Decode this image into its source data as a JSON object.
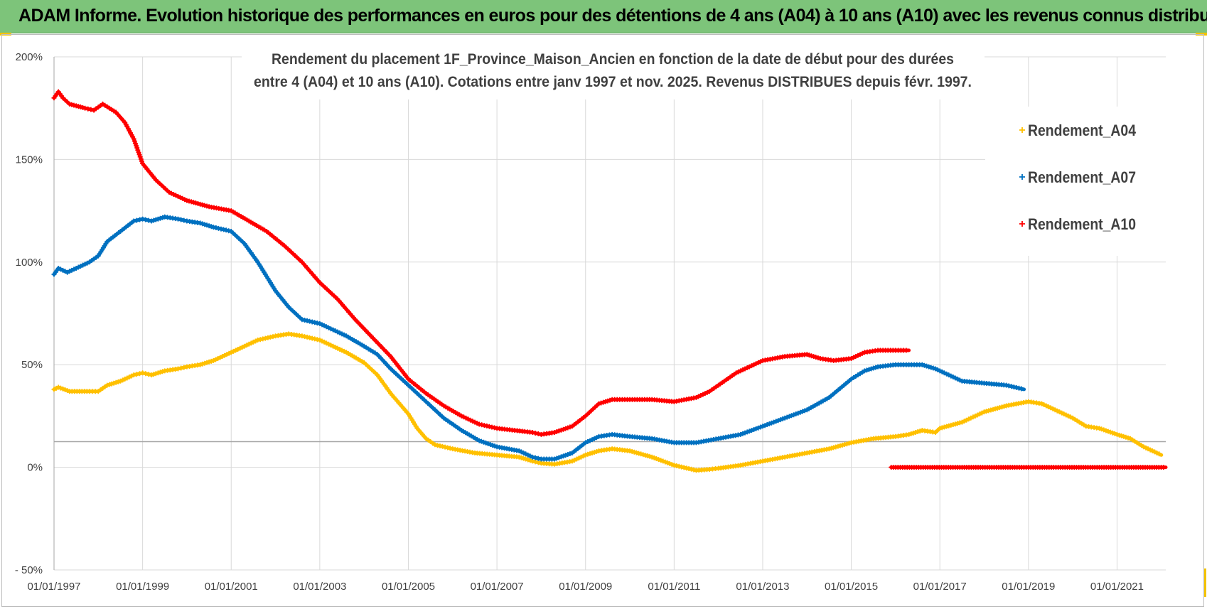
{
  "banner": {
    "title": "ADAM Informe. Evolution historique des performances en euros pour des détentions de 4 ans (A04) à 10 ans (A10) avec les revenus connus distribués",
    "bg_color": "#7dc47a",
    "accent_color": "#f2c200"
  },
  "chart_data": {
    "type": "scatter",
    "title_lines": [
      "Rendement du placement 1F_Province_Maison_Ancien en fonction de la date de début pour des durées",
      "entre 4 (A04) et 10 ans (A10).  Cotations entre janv 1997 et  nov. 2025. Revenus DISTRIBUES depuis févr. 1997."
    ],
    "x_range": [
      1997.0,
      2022.1
    ],
    "x_ticks": [
      {
        "value": 1997,
        "label": "01/01/1997"
      },
      {
        "value": 1999,
        "label": "01/01/1999"
      },
      {
        "value": 2001,
        "label": "01/01/2001"
      },
      {
        "value": 2003,
        "label": "01/01/2003"
      },
      {
        "value": 2005,
        "label": "01/01/2005"
      },
      {
        "value": 2007,
        "label": "01/01/2007"
      },
      {
        "value": 2009,
        "label": "01/01/2009"
      },
      {
        "value": 2011,
        "label": "01/01/2011"
      },
      {
        "value": 2013,
        "label": "01/01/2013"
      },
      {
        "value": 2015,
        "label": "01/01/2015"
      },
      {
        "value": 2017,
        "label": "01/01/2017"
      },
      {
        "value": 2019,
        "label": "01/01/2019"
      },
      {
        "value": 2021,
        "label": "01/01/2021"
      }
    ],
    "y_range": [
      -50,
      200
    ],
    "y_ticks": [
      {
        "value": 200,
        "label": "200%"
      },
      {
        "value": 150,
        "label": "150%"
      },
      {
        "value": 100,
        "label": "100%"
      },
      {
        "value": 50,
        "label": "50%"
      },
      {
        "value": 0,
        "label": "0%"
      },
      {
        "value": -50,
        "label": "- 50%"
      }
    ],
    "reference_line": 12.5,
    "legend": [
      {
        "name": "Rendement_A04",
        "color": "#ffc000"
      },
      {
        "name": "Rendement_A07",
        "color": "#0070c0"
      },
      {
        "name": "Rendement_A10",
        "color": "#ff0000"
      }
    ],
    "series": [
      {
        "name": "Rendement_A04",
        "color": "#ffc000",
        "points": [
          [
            1997.0,
            38
          ],
          [
            1997.1,
            39
          ],
          [
            1997.35,
            37
          ],
          [
            1997.8,
            37
          ],
          [
            1998.0,
            37
          ],
          [
            1998.2,
            40
          ],
          [
            1998.5,
            42
          ],
          [
            1998.8,
            45
          ],
          [
            1999.0,
            46
          ],
          [
            1999.2,
            45
          ],
          [
            1999.5,
            47
          ],
          [
            1999.8,
            48
          ],
          [
            2000.0,
            49
          ],
          [
            2000.3,
            50
          ],
          [
            2000.6,
            52
          ],
          [
            2001.0,
            56
          ],
          [
            2001.3,
            59
          ],
          [
            2001.6,
            62
          ],
          [
            2002.0,
            64
          ],
          [
            2002.3,
            65
          ],
          [
            2002.6,
            64
          ],
          [
            2003.0,
            62
          ],
          [
            2003.3,
            59
          ],
          [
            2003.6,
            56
          ],
          [
            2004.0,
            51
          ],
          [
            2004.3,
            45
          ],
          [
            2004.6,
            36
          ],
          [
            2005.0,
            26
          ],
          [
            2005.2,
            19
          ],
          [
            2005.4,
            14
          ],
          [
            2005.6,
            11
          ],
          [
            2006.0,
            9
          ],
          [
            2006.5,
            7
          ],
          [
            2007.0,
            6
          ],
          [
            2007.5,
            5
          ],
          [
            2007.8,
            3
          ],
          [
            2008.0,
            2
          ],
          [
            2008.3,
            1.5
          ],
          [
            2008.7,
            3
          ],
          [
            2009.0,
            6
          ],
          [
            2009.3,
            8
          ],
          [
            2009.6,
            9
          ],
          [
            2010.0,
            8
          ],
          [
            2010.5,
            5
          ],
          [
            2011.0,
            1
          ],
          [
            2011.5,
            -1.5
          ],
          [
            2011.8,
            -1
          ],
          [
            2012.0,
            -0.5
          ],
          [
            2012.5,
            1
          ],
          [
            2013.0,
            3
          ],
          [
            2013.5,
            5
          ],
          [
            2014.0,
            7
          ],
          [
            2014.5,
            9
          ],
          [
            2015.0,
            12
          ],
          [
            2015.5,
            14
          ],
          [
            2016.0,
            15
          ],
          [
            2016.3,
            16
          ],
          [
            2016.6,
            18
          ],
          [
            2016.9,
            17
          ],
          [
            2017.0,
            19
          ],
          [
            2017.5,
            22
          ],
          [
            2018.0,
            27
          ],
          [
            2018.5,
            30
          ],
          [
            2019.0,
            32
          ],
          [
            2019.3,
            31
          ],
          [
            2019.6,
            28
          ],
          [
            2020.0,
            24
          ],
          [
            2020.3,
            20
          ],
          [
            2020.6,
            19
          ],
          [
            2021.0,
            16
          ],
          [
            2021.3,
            14
          ],
          [
            2021.6,
            10
          ],
          [
            2022.0,
            6
          ]
        ]
      },
      {
        "name": "Rendement_A07",
        "color": "#0070c0",
        "points": [
          [
            1997.0,
            94
          ],
          [
            1997.1,
            97
          ],
          [
            1997.3,
            95
          ],
          [
            1997.5,
            97
          ],
          [
            1997.8,
            100
          ],
          [
            1998.0,
            103
          ],
          [
            1998.2,
            110
          ],
          [
            1998.5,
            115
          ],
          [
            1998.8,
            120
          ],
          [
            1999.0,
            121
          ],
          [
            1999.2,
            120
          ],
          [
            1999.5,
            122
          ],
          [
            1999.8,
            121
          ],
          [
            2000.0,
            120
          ],
          [
            2000.3,
            119
          ],
          [
            2000.6,
            117
          ],
          [
            2001.0,
            115
          ],
          [
            2001.3,
            109
          ],
          [
            2001.6,
            100
          ],
          [
            2002.0,
            86
          ],
          [
            2002.3,
            78
          ],
          [
            2002.6,
            72
          ],
          [
            2003.0,
            70
          ],
          [
            2003.3,
            67
          ],
          [
            2003.6,
            64
          ],
          [
            2004.0,
            59
          ],
          [
            2004.3,
            55
          ],
          [
            2004.6,
            48
          ],
          [
            2005.0,
            40
          ],
          [
            2005.4,
            32
          ],
          [
            2005.8,
            24
          ],
          [
            2006.2,
            18
          ],
          [
            2006.6,
            13
          ],
          [
            2007.0,
            10
          ],
          [
            2007.5,
            8
          ],
          [
            2007.8,
            5
          ],
          [
            2008.0,
            4
          ],
          [
            2008.3,
            4
          ],
          [
            2008.7,
            7
          ],
          [
            2009.0,
            12
          ],
          [
            2009.3,
            15
          ],
          [
            2009.6,
            16
          ],
          [
            2010.0,
            15
          ],
          [
            2010.5,
            14
          ],
          [
            2011.0,
            12
          ],
          [
            2011.5,
            12
          ],
          [
            2012.0,
            14
          ],
          [
            2012.5,
            16
          ],
          [
            2013.0,
            20
          ],
          [
            2013.5,
            24
          ],
          [
            2014.0,
            28
          ],
          [
            2014.5,
            34
          ],
          [
            2015.0,
            43
          ],
          [
            2015.3,
            47
          ],
          [
            2015.6,
            49
          ],
          [
            2016.0,
            50
          ],
          [
            2016.3,
            50
          ],
          [
            2016.6,
            50
          ],
          [
            2016.9,
            48
          ],
          [
            2017.2,
            45
          ],
          [
            2017.5,
            42
          ],
          [
            2018.0,
            41
          ],
          [
            2018.5,
            40
          ],
          [
            2018.9,
            38
          ]
        ]
      },
      {
        "name": "Rendement_A10",
        "color": "#ff0000",
        "points": [
          [
            1997.0,
            180
          ],
          [
            1997.1,
            183
          ],
          [
            1997.2,
            180
          ],
          [
            1997.35,
            177
          ],
          [
            1997.7,
            175
          ],
          [
            1997.9,
            174
          ],
          [
            1998.1,
            177
          ],
          [
            1998.4,
            173
          ],
          [
            1998.6,
            168
          ],
          [
            1998.8,
            160
          ],
          [
            1999.0,
            148
          ],
          [
            1999.3,
            140
          ],
          [
            1999.6,
            134
          ],
          [
            2000.0,
            130
          ],
          [
            2000.5,
            127
          ],
          [
            2001.0,
            125
          ],
          [
            2001.4,
            120
          ],
          [
            2001.8,
            115
          ],
          [
            2002.2,
            108
          ],
          [
            2002.6,
            100
          ],
          [
            2003.0,
            90
          ],
          [
            2003.4,
            82
          ],
          [
            2003.8,
            72
          ],
          [
            2004.2,
            63
          ],
          [
            2004.6,
            54
          ],
          [
            2005.0,
            43
          ],
          [
            2005.4,
            36
          ],
          [
            2005.8,
            30
          ],
          [
            2006.2,
            25
          ],
          [
            2006.6,
            21
          ],
          [
            2007.0,
            19
          ],
          [
            2007.4,
            18
          ],
          [
            2007.8,
            17
          ],
          [
            2008.0,
            16
          ],
          [
            2008.3,
            17
          ],
          [
            2008.7,
            20
          ],
          [
            2009.0,
            25
          ],
          [
            2009.3,
            31
          ],
          [
            2009.6,
            33
          ],
          [
            2010.0,
            33
          ],
          [
            2010.5,
            33
          ],
          [
            2011.0,
            32
          ],
          [
            2011.5,
            34
          ],
          [
            2011.8,
            37
          ],
          [
            2012.0,
            40
          ],
          [
            2012.4,
            46
          ],
          [
            2012.8,
            50
          ],
          [
            2013.0,
            52
          ],
          [
            2013.5,
            54
          ],
          [
            2014.0,
            55
          ],
          [
            2014.3,
            53
          ],
          [
            2014.6,
            52
          ],
          [
            2015.0,
            53
          ],
          [
            2015.3,
            56
          ],
          [
            2015.6,
            57
          ],
          [
            2016.0,
            57
          ],
          [
            2016.3,
            57
          ]
        ]
      },
      {
        "name": "Rendement_A10",
        "color": "#ff0000",
        "points": [
          [
            2015.9,
            0
          ],
          [
            2022.1,
            0
          ]
        ]
      }
    ]
  }
}
